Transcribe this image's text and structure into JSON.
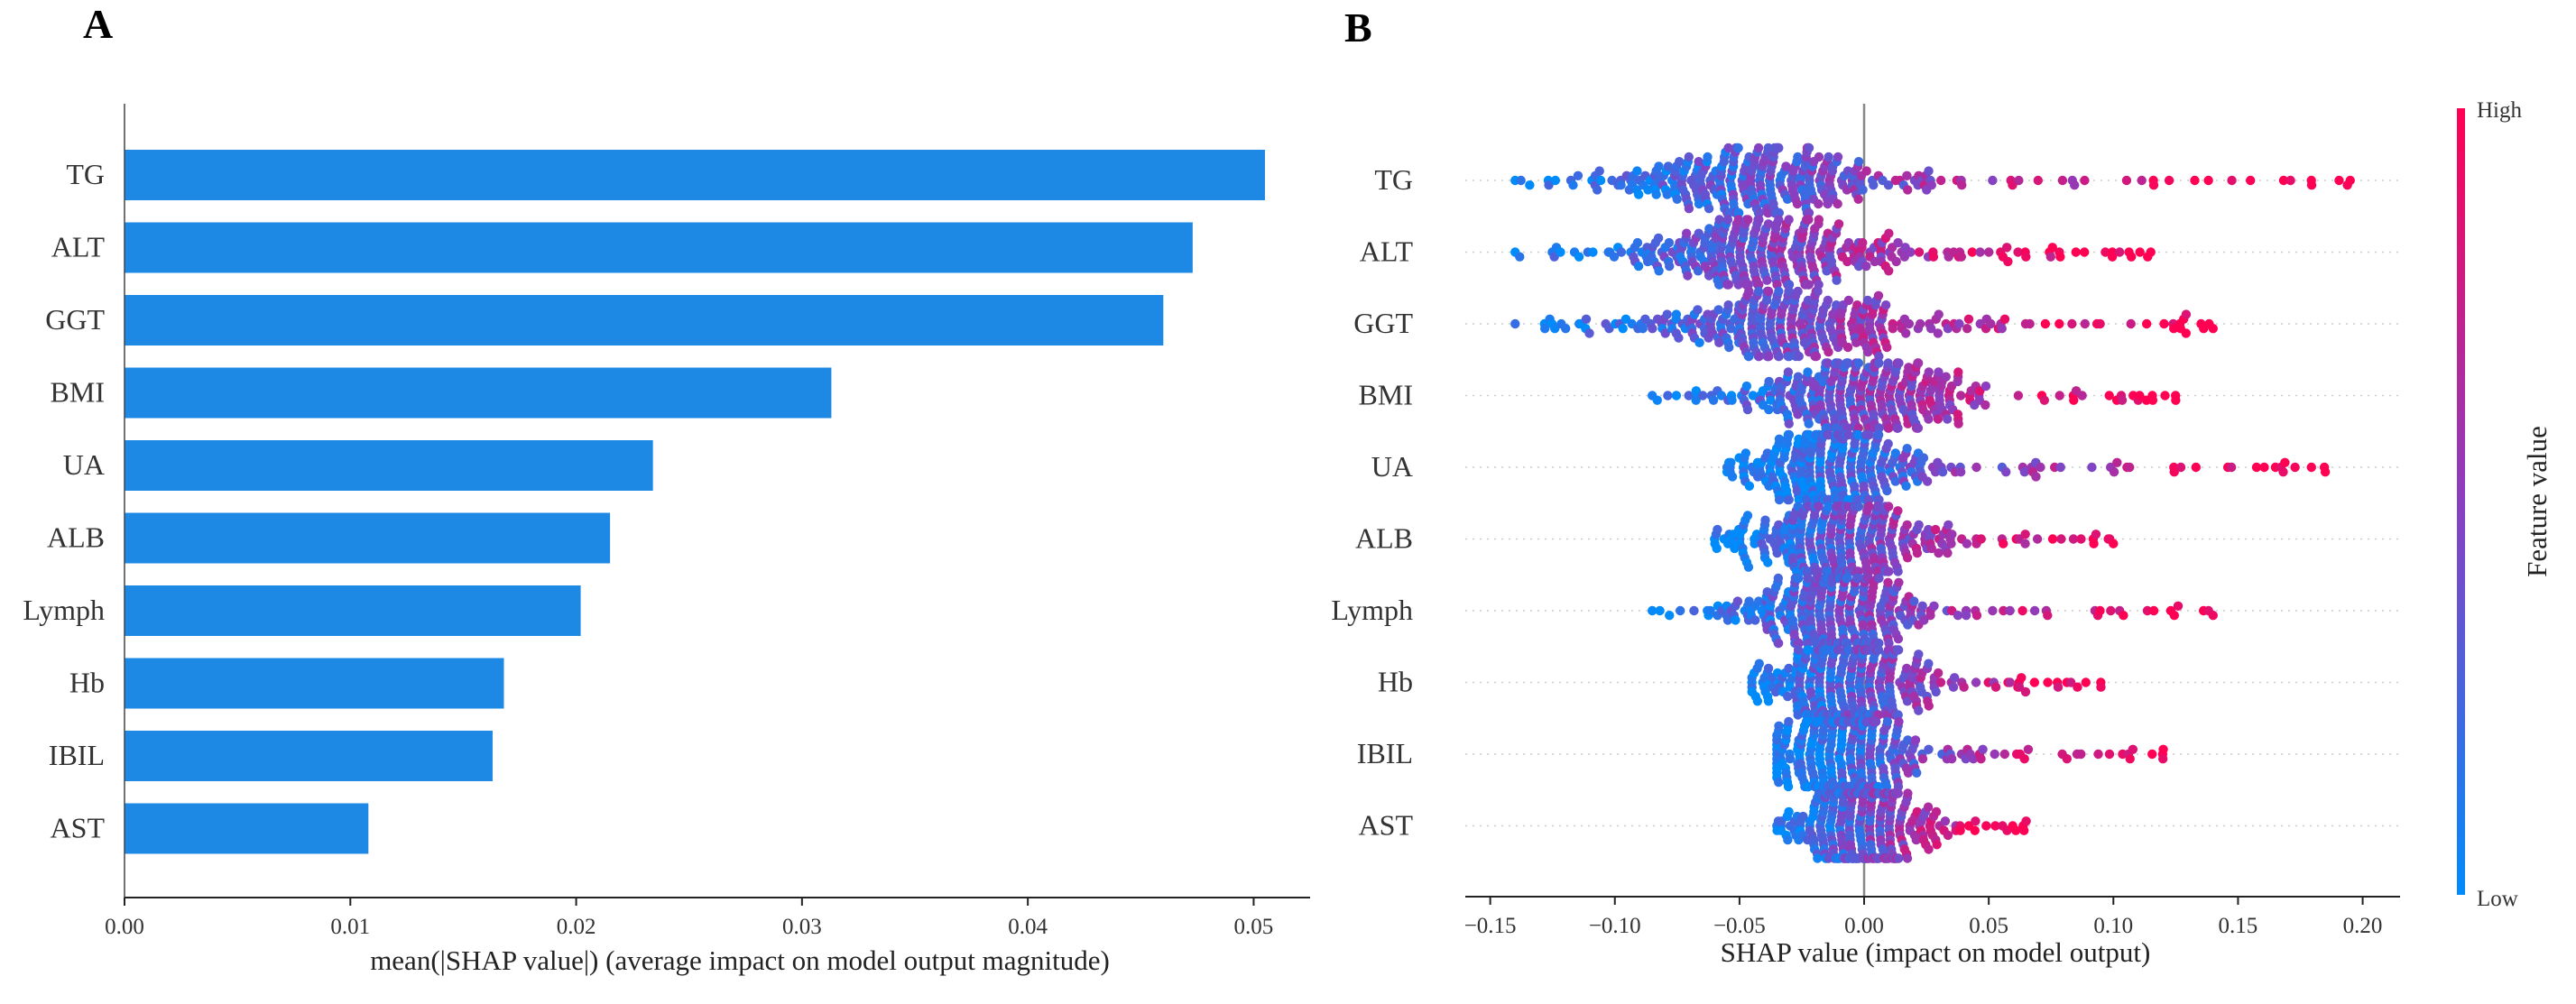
{
  "panel_a_label": "A",
  "panel_b_label": "B",
  "colors": {
    "bar": "#1e88e5",
    "low": "#008bfb",
    "high": "#ff0052",
    "axis": "#222222",
    "zero_line": "#888888"
  },
  "chart_data": [
    {
      "type": "bar",
      "orientation": "horizontal",
      "categories": [
        "TG",
        "ALT",
        "GGT",
        "BMI",
        "UA",
        "ALB",
        "Lymph",
        "Hb",
        "IBIL",
        "AST"
      ],
      "values": [
        0.0505,
        0.0473,
        0.046,
        0.0313,
        0.0234,
        0.0215,
        0.0202,
        0.0168,
        0.0163,
        0.0108
      ],
      "xlabel": "mean(|SHAP value|) (average impact on model output magnitude)",
      "ylabel": "",
      "xlim": [
        0,
        0.0525
      ],
      "xticks": [
        0.0,
        0.01,
        0.02,
        0.03,
        0.04,
        0.05
      ],
      "xtick_labels": [
        "0.00",
        "0.01",
        "0.02",
        "0.03",
        "0.04",
        "0.05"
      ]
    },
    {
      "type": "scatter",
      "subtype": "shap-beeswarm",
      "features": [
        "TG",
        "ALT",
        "GGT",
        "BMI",
        "UA",
        "ALB",
        "Lymph",
        "Hb",
        "IBIL",
        "AST"
      ],
      "series": [
        {
          "name": "TG",
          "shap_min": -0.14,
          "shap_max": 0.195,
          "center": -0.04,
          "spread": 0.045,
          "high_dir": 1
        },
        {
          "name": "ALT",
          "shap_min": -0.14,
          "shap_max": 0.115,
          "center": -0.04,
          "spread": 0.04,
          "high_dir": 1
        },
        {
          "name": "GGT",
          "shap_min": -0.14,
          "shap_max": 0.14,
          "center": -0.03,
          "spread": 0.045,
          "high_dir": 1
        },
        {
          "name": "BMI",
          "shap_min": -0.085,
          "shap_max": 0.125,
          "center": 0.0,
          "spread": 0.035,
          "high_dir": 1
        },
        {
          "name": "UA",
          "shap_min": -0.055,
          "shap_max": 0.185,
          "center": -0.01,
          "spread": 0.03,
          "high_dir": 1
        },
        {
          "name": "ALB",
          "shap_min": -0.06,
          "shap_max": 0.1,
          "center": -0.01,
          "spread": 0.03,
          "high_dir": 1
        },
        {
          "name": "Lymph",
          "shap_min": -0.085,
          "shap_max": 0.14,
          "center": -0.01,
          "spread": 0.03,
          "high_dir": 1
        },
        {
          "name": "Hb",
          "shap_min": -0.045,
          "shap_max": 0.095,
          "center": -0.005,
          "spread": 0.025,
          "high_dir": 1
        },
        {
          "name": "IBIL",
          "shap_min": -0.035,
          "shap_max": 0.12,
          "center": -0.01,
          "spread": 0.022,
          "high_dir": 1
        },
        {
          "name": "AST",
          "shap_min": -0.035,
          "shap_max": 0.065,
          "center": 0.0,
          "spread": 0.02,
          "high_dir": 1
        }
      ],
      "xlabel": "SHAP value (impact on model output)",
      "xlim": [
        -0.16,
        0.215
      ],
      "xticks": [
        -0.15,
        -0.1,
        -0.05,
        0.0,
        0.05,
        0.1,
        0.15,
        0.2
      ],
      "xtick_labels": [
        "−0.15",
        "−0.10",
        "−0.05",
        "0.00",
        "0.05",
        "0.10",
        "0.15",
        "0.20"
      ],
      "colorbar": {
        "title": "Feature value",
        "high_label": "High",
        "low_label": "Low"
      }
    }
  ]
}
